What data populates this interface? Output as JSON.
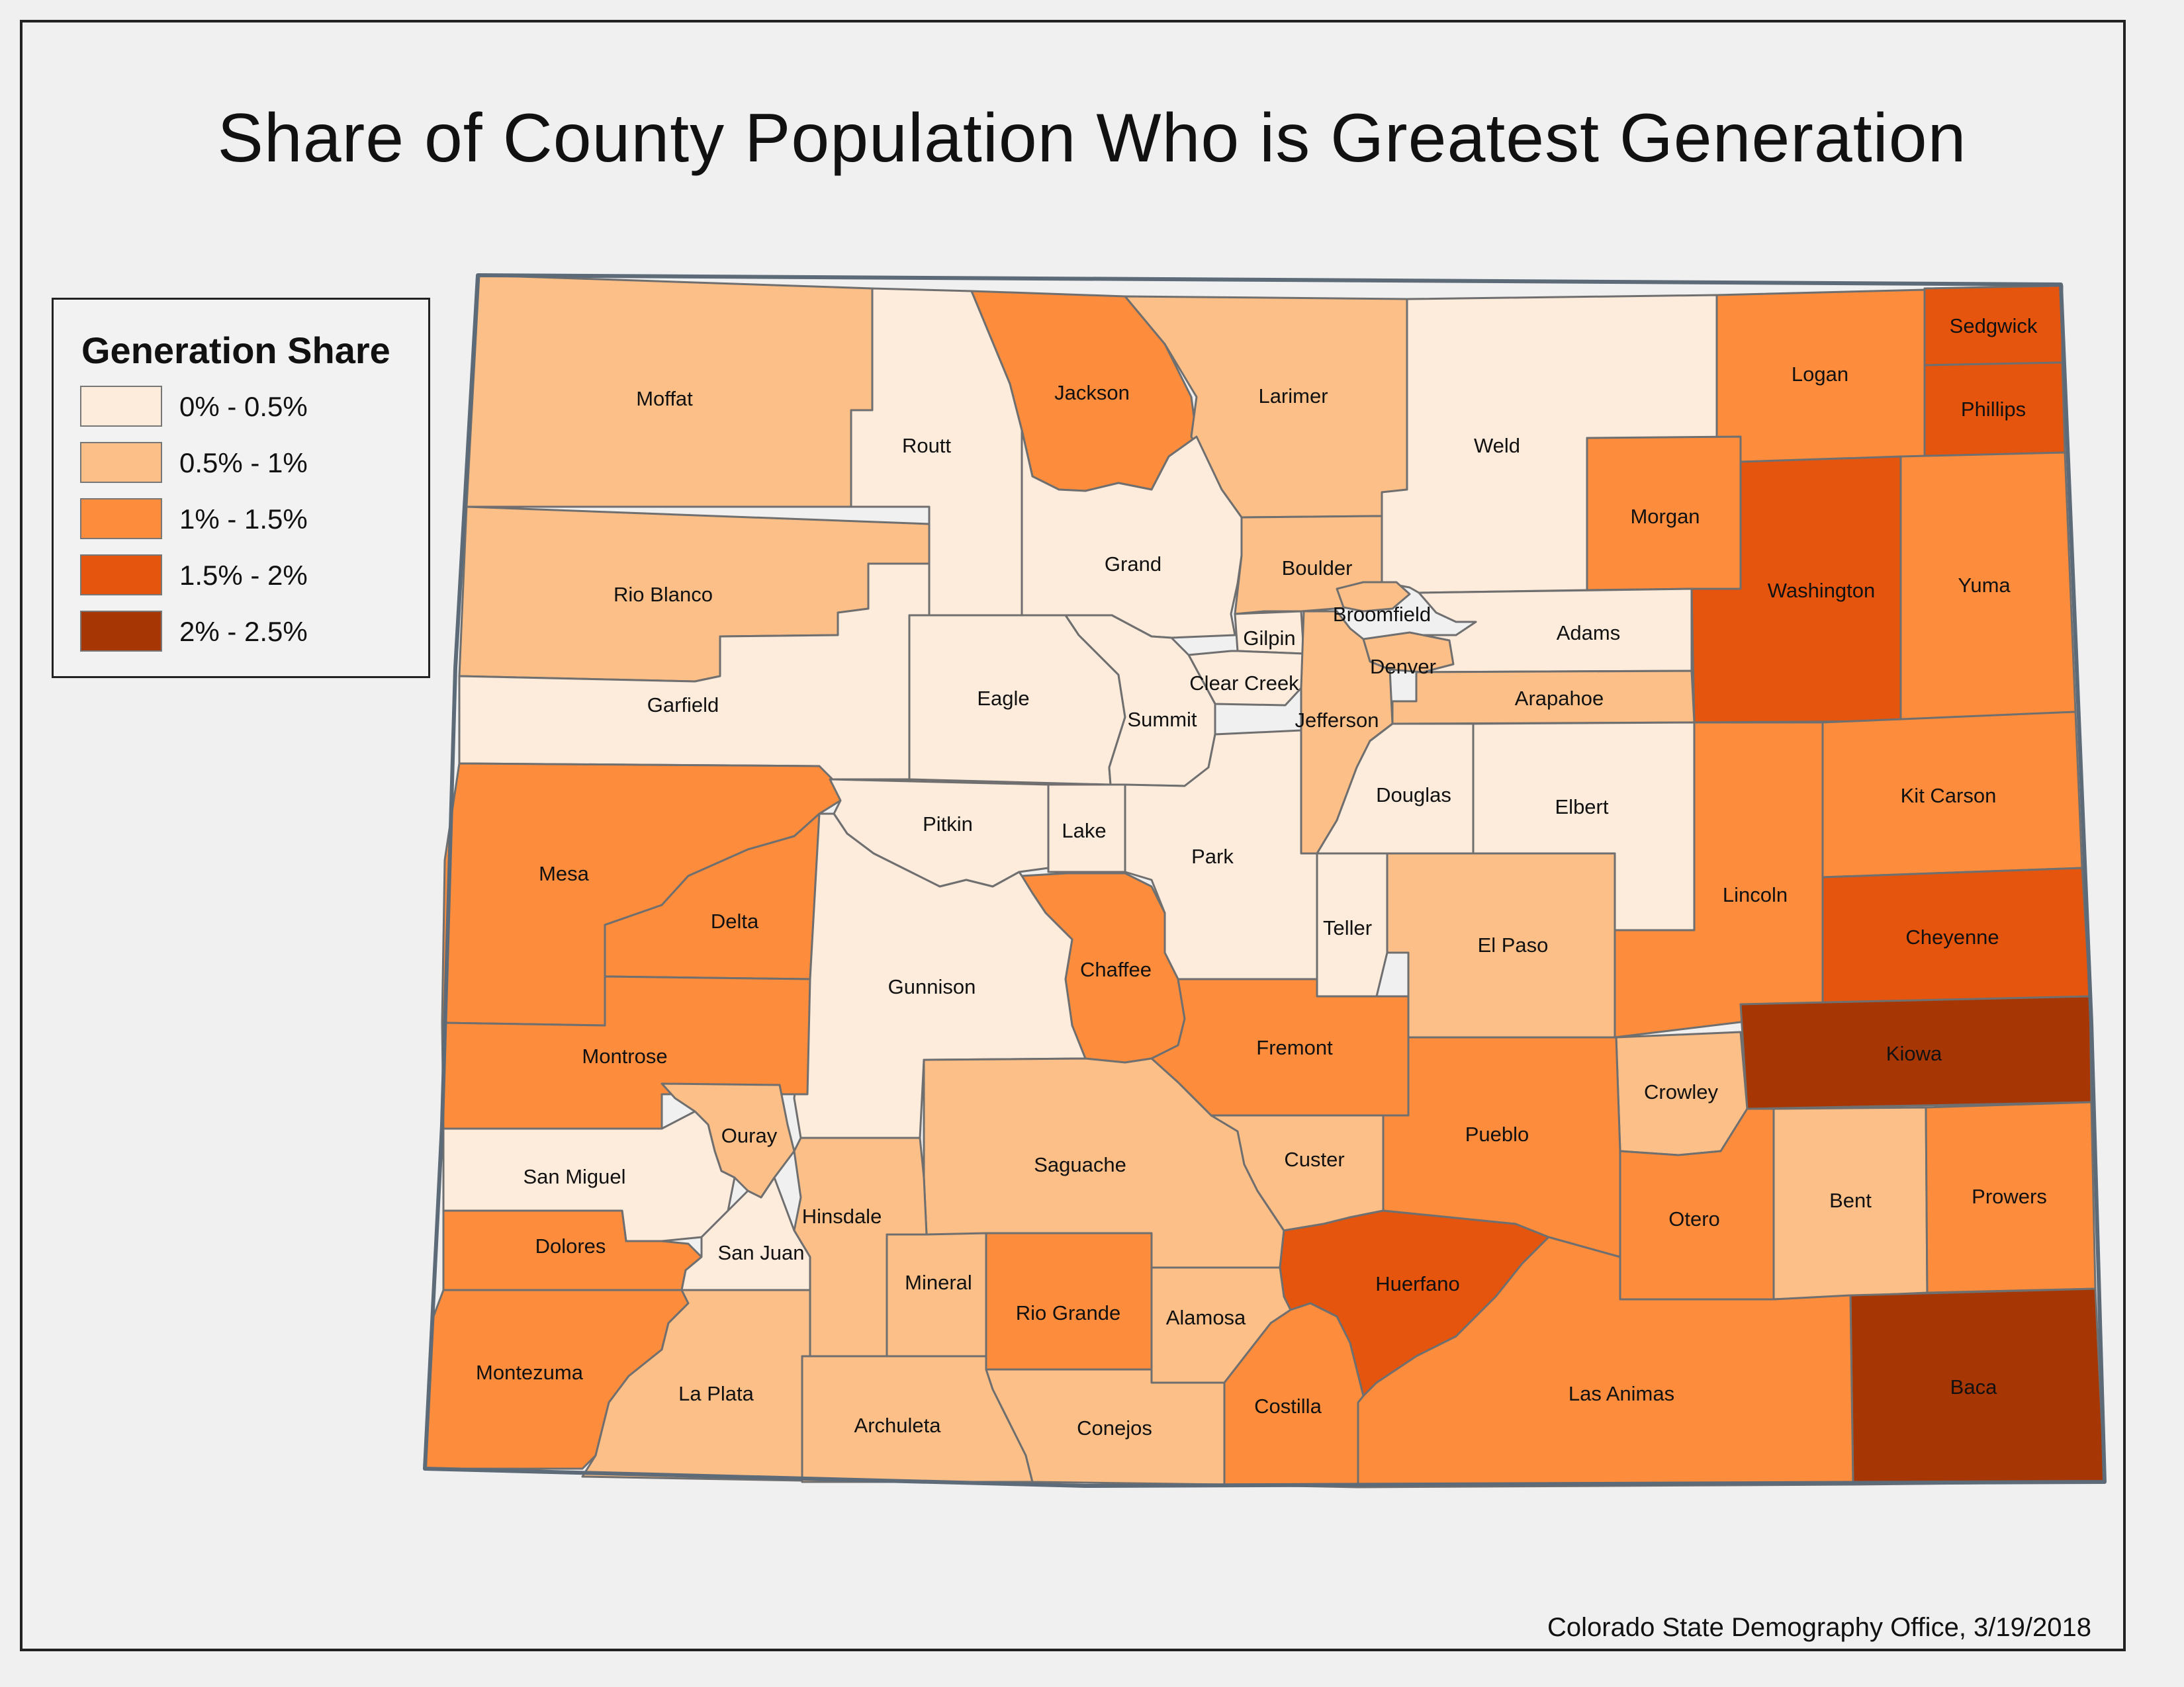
{
  "title": "Share of County Population Who is Greatest Generation",
  "legend": {
    "title": "Generation Share",
    "classes": [
      {
        "label": "0% - 0.5%",
        "color": "#fdebdc"
      },
      {
        "label": "0.5% - 1%",
        "color": "#fcbf87"
      },
      {
        "label": "1% - 1.5%",
        "color": "#fd8d3c"
      },
      {
        "label": "1.5% - 2%",
        "color": "#e6550d"
      },
      {
        "label": "2% - 2.5%",
        "color": "#a63603"
      }
    ]
  },
  "credit": "Colorado State Demography Office, 3/19/2018",
  "counties": [
    {
      "name": "Moffat",
      "cls": 1
    },
    {
      "name": "Routt",
      "cls": 0
    },
    {
      "name": "Jackson",
      "cls": 2
    },
    {
      "name": "Larimer",
      "cls": 1
    },
    {
      "name": "Weld",
      "cls": 0
    },
    {
      "name": "Logan",
      "cls": 2
    },
    {
      "name": "Sedgwick",
      "cls": 3
    },
    {
      "name": "Phillips",
      "cls": 3
    },
    {
      "name": "Rio Blanco",
      "cls": 1
    },
    {
      "name": "Grand",
      "cls": 0
    },
    {
      "name": "Boulder",
      "cls": 1
    },
    {
      "name": "Morgan",
      "cls": 2
    },
    {
      "name": "Washington",
      "cls": 3
    },
    {
      "name": "Yuma",
      "cls": 2
    },
    {
      "name": "Broomfield",
      "cls": 1
    },
    {
      "name": "Gilpin",
      "cls": 0
    },
    {
      "name": "Adams",
      "cls": 0
    },
    {
      "name": "Denver",
      "cls": 1
    },
    {
      "name": "Clear Creek",
      "cls": 0
    },
    {
      "name": "Arapahoe",
      "cls": 1
    },
    {
      "name": "Garfield",
      "cls": 0
    },
    {
      "name": "Eagle",
      "cls": 0
    },
    {
      "name": "Summit",
      "cls": 0
    },
    {
      "name": "Jefferson",
      "cls": 1
    },
    {
      "name": "Douglas",
      "cls": 0
    },
    {
      "name": "Elbert",
      "cls": 0
    },
    {
      "name": "Kit Carson",
      "cls": 2
    },
    {
      "name": "Mesa",
      "cls": 2
    },
    {
      "name": "Pitkin",
      "cls": 0
    },
    {
      "name": "Lake",
      "cls": 0
    },
    {
      "name": "Park",
      "cls": 0
    },
    {
      "name": "Delta",
      "cls": 2
    },
    {
      "name": "Teller",
      "cls": 0
    },
    {
      "name": "El Paso",
      "cls": 1
    },
    {
      "name": "Lincoln",
      "cls": 2
    },
    {
      "name": "Cheyenne",
      "cls": 3
    },
    {
      "name": "Chaffee",
      "cls": 2
    },
    {
      "name": "Gunnison",
      "cls": 0
    },
    {
      "name": "Montrose",
      "cls": 2
    },
    {
      "name": "Fremont",
      "cls": 2
    },
    {
      "name": "Kiowa",
      "cls": 4
    },
    {
      "name": "Crowley",
      "cls": 1
    },
    {
      "name": "Ouray",
      "cls": 1
    },
    {
      "name": "Pueblo",
      "cls": 2
    },
    {
      "name": "San Miguel",
      "cls": 0
    },
    {
      "name": "Saguache",
      "cls": 1
    },
    {
      "name": "Custer",
      "cls": 1
    },
    {
      "name": "Bent",
      "cls": 1
    },
    {
      "name": "Prowers",
      "cls": 2
    },
    {
      "name": "Hinsdale",
      "cls": 1
    },
    {
      "name": "Otero",
      "cls": 2
    },
    {
      "name": "Dolores",
      "cls": 2
    },
    {
      "name": "San Juan",
      "cls": 0
    },
    {
      "name": "Mineral",
      "cls": 1
    },
    {
      "name": "Huerfano",
      "cls": 3
    },
    {
      "name": "Rio Grande",
      "cls": 2
    },
    {
      "name": "Alamosa",
      "cls": 1
    },
    {
      "name": "Baca",
      "cls": 4
    },
    {
      "name": "Montezuma",
      "cls": 2
    },
    {
      "name": "La Plata",
      "cls": 1
    },
    {
      "name": "Las Animas",
      "cls": 2
    },
    {
      "name": "Archuleta",
      "cls": 1
    },
    {
      "name": "Costilla",
      "cls": 2
    },
    {
      "name": "Conejos",
      "cls": 1
    }
  ]
}
